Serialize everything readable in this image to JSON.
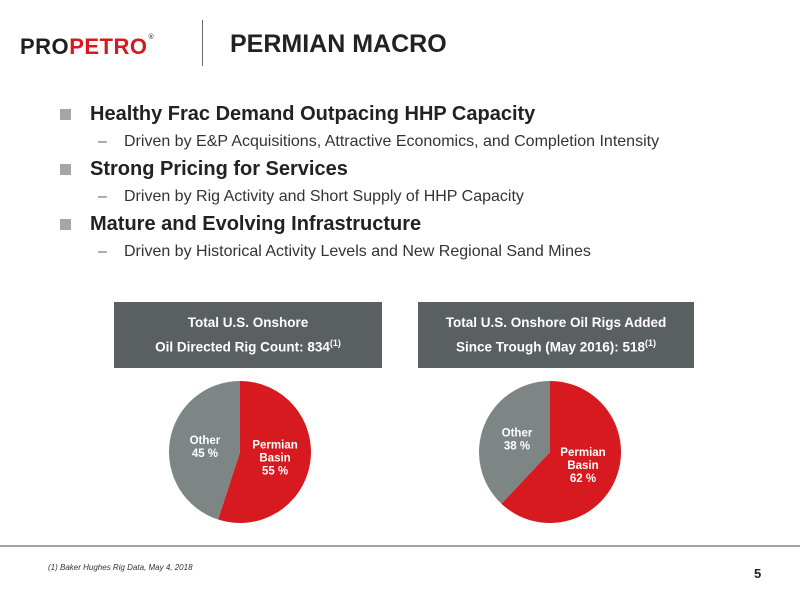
{
  "logo": {
    "pro": "PRO",
    "petro": "PETRO",
    "reg": "®"
  },
  "title": "PERMIAN MACRO",
  "bullets": [
    {
      "heading": "Healthy Frac Demand Outpacing HHP Capacity",
      "sub": "Driven by E&P Acquisitions, Attractive Economics, and Completion Intensity"
    },
    {
      "heading": "Strong Pricing for Services",
      "sub": "Driven by Rig Activity and Short Supply of HHP Capacity"
    },
    {
      "heading": "Mature and Evolving Infrastructure",
      "sub": "Driven by Historical Activity Levels and New Regional Sand Mines"
    }
  ],
  "bullet_dash": "–",
  "colors": {
    "permian": "#d71920",
    "other": "#7d8585",
    "box": "#5a5f61"
  },
  "chart_data": [
    {
      "type": "pie",
      "title_line1": "Total U.S. Onshore",
      "title_line2": "Oil Directed Rig Count: 834",
      "title_sup": "(1)",
      "slices": [
        {
          "label": "Permian Basin",
          "label_lines": [
            "Permian",
            "Basin"
          ],
          "value": 55,
          "pct_text": "55 %"
        },
        {
          "label": "Other",
          "label_lines": [
            "Other"
          ],
          "value": 45,
          "pct_text": "45 %"
        }
      ]
    },
    {
      "type": "pie",
      "title_line1": "Total U.S. Onshore Oil Rigs Added",
      "title_line2": "Since Trough (May 2016): 518",
      "title_sup": "(1)",
      "slices": [
        {
          "label": "Permian Basin",
          "label_lines": [
            "Permian",
            "Basin"
          ],
          "value": 62,
          "pct_text": "62 %"
        },
        {
          "label": "Other",
          "label_lines": [
            "Other"
          ],
          "value": 38,
          "pct_text": "38 %"
        }
      ]
    }
  ],
  "footnote": "(1) Baker Hughes Rig Data, May 4, 2018",
  "page_number": "5"
}
